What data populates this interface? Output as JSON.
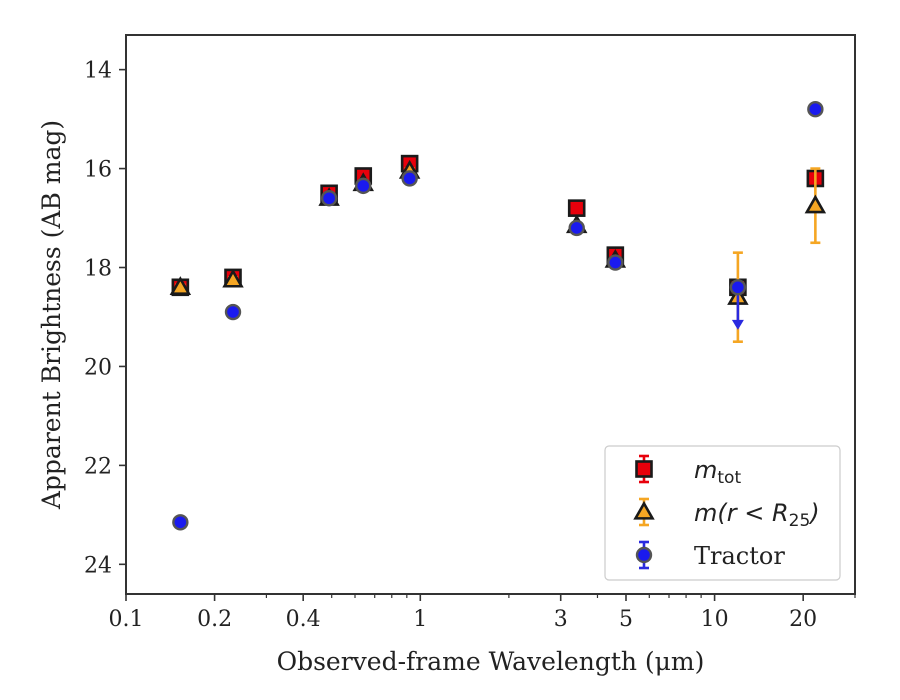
{
  "chart_data": {
    "type": "scatter",
    "title": "",
    "xlabel": "Observed-frame Wavelength (μm)",
    "ylabel": "Apparent Brightness (AB mag)",
    "x_scale": "log",
    "xlim": [
      0.1,
      30
    ],
    "ylim": [
      24.6,
      13.3
    ],
    "y_inverted": true,
    "grid": false,
    "legend_position": "lower-right",
    "x_ticks": [
      {
        "value": 0.1,
        "label": "0.1"
      },
      {
        "value": 0.2,
        "label": "0.2"
      },
      {
        "value": 0.4,
        "label": "0.4"
      },
      {
        "value": 1,
        "label": "1"
      },
      {
        "value": 3,
        "label": "3"
      },
      {
        "value": 5,
        "label": "5"
      },
      {
        "value": 10,
        "label": "10"
      },
      {
        "value": 20,
        "label": "20"
      }
    ],
    "x_minor_ticks": [
      0.3,
      0.5,
      0.6,
      0.7,
      0.8,
      0.9,
      2,
      4,
      6,
      7,
      8,
      9,
      30
    ],
    "y_ticks": [
      {
        "value": 14,
        "label": "14"
      },
      {
        "value": 16,
        "label": "16"
      },
      {
        "value": 18,
        "label": "18"
      },
      {
        "value": 20,
        "label": "20"
      },
      {
        "value": 22,
        "label": "22"
      },
      {
        "value": 24,
        "label": "24"
      }
    ],
    "series": [
      {
        "name": "m_tot",
        "legend_label": "m",
        "legend_subscript": "tot",
        "marker": "square",
        "color": "#e8000b",
        "edge": "#1a1a1a",
        "err_color": "#e8000b",
        "points": [
          {
            "x": 0.153,
            "y": 18.4,
            "err": 0.05
          },
          {
            "x": 0.231,
            "y": 18.2,
            "err": 0.05
          },
          {
            "x": 0.49,
            "y": 16.5,
            "err": 0.05
          },
          {
            "x": 0.64,
            "y": 16.15,
            "err": 0.05
          },
          {
            "x": 0.92,
            "y": 15.9,
            "err": 0.05
          },
          {
            "x": 3.4,
            "y": 16.8,
            "err": 0.05
          },
          {
            "x": 4.6,
            "y": 17.75,
            "err": 0.05
          },
          {
            "x": 12.0,
            "y": 18.4,
            "err": 0.1
          },
          {
            "x": 22.0,
            "y": 16.2,
            "err": 0.1
          }
        ]
      },
      {
        "name": "m(r < R_25)",
        "legend_label": "m(r < R",
        "legend_subscript": "25",
        "legend_suffix": ")",
        "marker": "triangle",
        "color": "#f5a623",
        "edge": "#1a1a1a",
        "err_color": "#f5a623",
        "points": [
          {
            "x": 0.153,
            "y": 18.4,
            "err": 0.05
          },
          {
            "x": 0.231,
            "y": 18.25,
            "err": 0.05
          },
          {
            "x": 0.49,
            "y": 16.6,
            "err": 0.05
          },
          {
            "x": 0.64,
            "y": 16.3,
            "err": 0.05
          },
          {
            "x": 0.92,
            "y": 16.05,
            "err": 0.05
          },
          {
            "x": 3.4,
            "y": 17.15,
            "err": 0.05
          },
          {
            "x": 4.6,
            "y": 17.85,
            "err": 0.05
          },
          {
            "x": 12.0,
            "y": 18.6,
            "err": 0.9
          },
          {
            "x": 22.0,
            "y": 16.75,
            "err": 0.75
          }
        ]
      },
      {
        "name": "Tractor",
        "legend_label": "Tractor",
        "marker": "circle",
        "color": "#1a1aee",
        "edge": "#555555",
        "err_color": "#2a2adf",
        "points": [
          {
            "x": 0.153,
            "y": 23.15,
            "err": 0.05
          },
          {
            "x": 0.231,
            "y": 18.9,
            "err": 0.05
          },
          {
            "x": 0.49,
            "y": 16.6,
            "err": 0.05
          },
          {
            "x": 0.64,
            "y": 16.35,
            "err": 0.05
          },
          {
            "x": 0.92,
            "y": 16.2,
            "err": 0.05
          },
          {
            "x": 3.4,
            "y": 17.2,
            "err": 0.05
          },
          {
            "x": 4.6,
            "y": 17.9,
            "err": 0.05
          },
          {
            "x": 12.0,
            "y": 18.4,
            "err": 0.05,
            "upper_limit_to": 19.2
          },
          {
            "x": 22.0,
            "y": 14.8,
            "err": 0.05
          }
        ]
      }
    ]
  }
}
